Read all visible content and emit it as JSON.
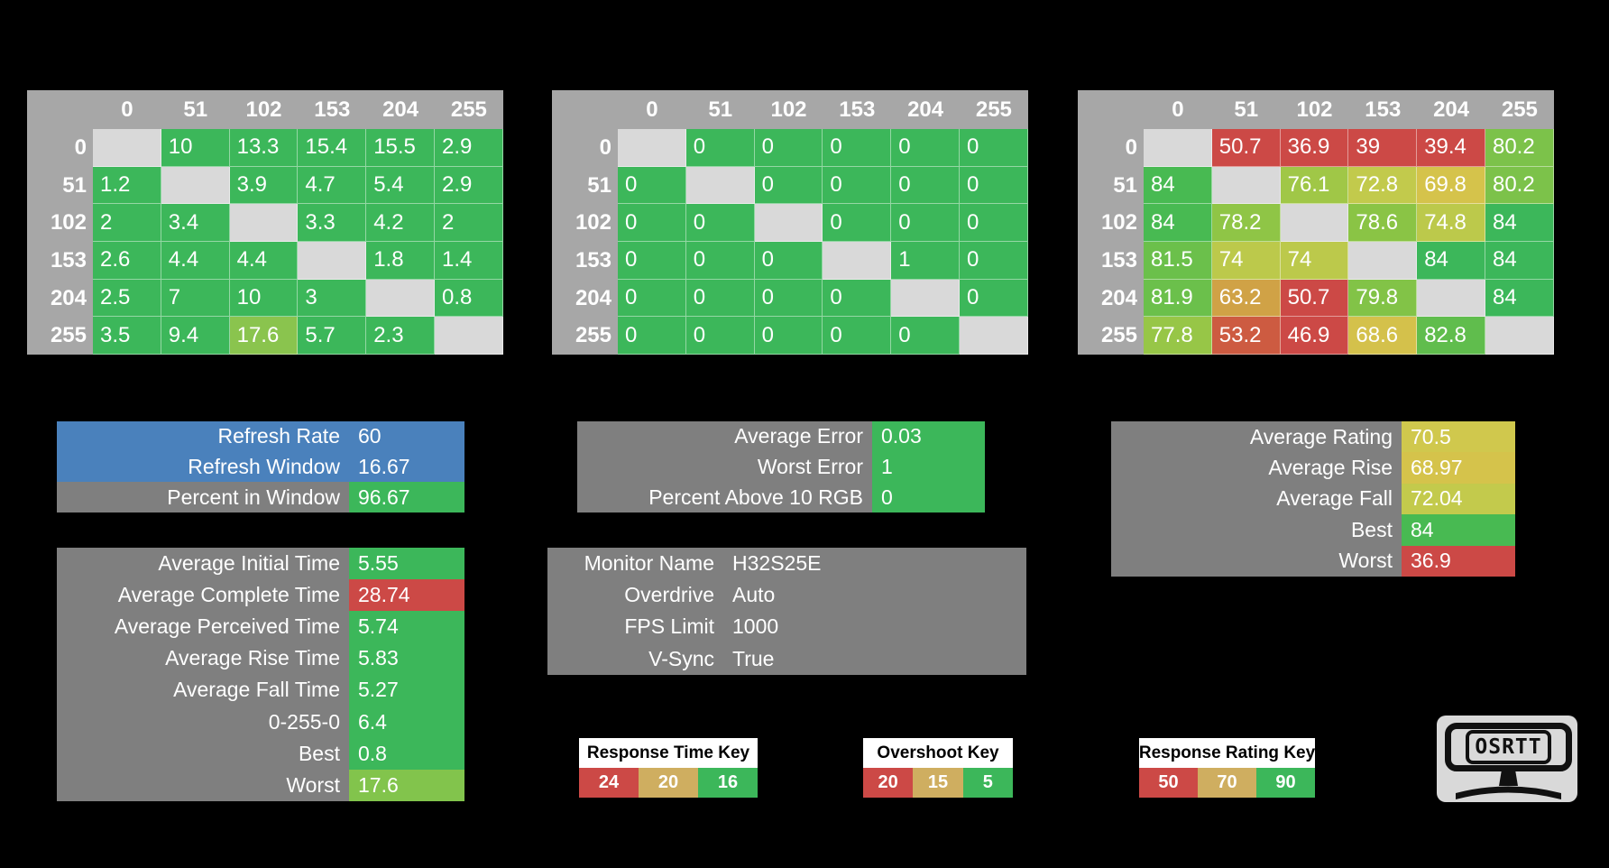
{
  "colors": {
    "background": "#000000",
    "good_green": "#3CB75A",
    "bad_red": "#CC4946",
    "warn_gold": "#CFAE60",
    "info_blue": "#4A81BC",
    "panel_gray": "#7F7F7F",
    "table_header_gray": "#A7A7A7",
    "diagonal_gray": "#D9D9D9"
  },
  "chart_data": [
    {
      "type": "heatmap",
      "id": "table-response-time",
      "name": "response-time-table",
      "x_labels": [
        "0",
        "51",
        "102",
        "153",
        "204",
        "255"
      ],
      "y_labels": [
        "0",
        "51",
        "102",
        "153",
        "204",
        "255"
      ],
      "values": [
        [
          null,
          10,
          13.3,
          15.4,
          15.5,
          2.9
        ],
        [
          1.2,
          null,
          3.9,
          4.7,
          5.4,
          2.9
        ],
        [
          2,
          3.4,
          null,
          3.3,
          4.2,
          2
        ],
        [
          2.6,
          4.4,
          4.4,
          null,
          1.8,
          1.4
        ],
        [
          2.5,
          7,
          10,
          3,
          null,
          0.8
        ],
        [
          3.5,
          9.4,
          17.6,
          5.7,
          2.3,
          null
        ]
      ],
      "cell_colors": [
        [
          null,
          "#3CB75A",
          "#3CB75A",
          "#3CB75A",
          "#3CB75A",
          "#3CB75A"
        ],
        [
          "#3CB75A",
          null,
          "#3CB75A",
          "#3CB75A",
          "#3CB75A",
          "#3CB75A"
        ],
        [
          "#3CB75A",
          "#3CB75A",
          null,
          "#3CB75A",
          "#3CB75A",
          "#3CB75A"
        ],
        [
          "#3CB75A",
          "#3CB75A",
          "#3CB75A",
          null,
          "#3CB75A",
          "#3CB75A"
        ],
        [
          "#3CB75A",
          "#3CB75A",
          "#3CB75A",
          "#3CB75A",
          null,
          "#3CB75A"
        ],
        [
          "#3CB75A",
          "#3CB75A",
          "#8AC44E",
          "#3CB75A",
          "#3CB75A",
          null
        ]
      ]
    },
    {
      "type": "heatmap",
      "id": "table-overshoot",
      "name": "overshoot-table",
      "x_labels": [
        "0",
        "51",
        "102",
        "153",
        "204",
        "255"
      ],
      "y_labels": [
        "0",
        "51",
        "102",
        "153",
        "204",
        "255"
      ],
      "values": [
        [
          null,
          0,
          0,
          0,
          0,
          0
        ],
        [
          0,
          null,
          0,
          0,
          0,
          0
        ],
        [
          0,
          0,
          null,
          0,
          0,
          0
        ],
        [
          0,
          0,
          0,
          null,
          1,
          0
        ],
        [
          0,
          0,
          0,
          0,
          null,
          0
        ],
        [
          0,
          0,
          0,
          0,
          0,
          null
        ]
      ],
      "cell_colors": [
        [
          null,
          "#3CB75A",
          "#3CB75A",
          "#3CB75A",
          "#3CB75A",
          "#3CB75A"
        ],
        [
          "#3CB75A",
          null,
          "#3CB75A",
          "#3CB75A",
          "#3CB75A",
          "#3CB75A"
        ],
        [
          "#3CB75A",
          "#3CB75A",
          null,
          "#3CB75A",
          "#3CB75A",
          "#3CB75A"
        ],
        [
          "#3CB75A",
          "#3CB75A",
          "#3CB75A",
          null,
          "#3CB75A",
          "#3CB75A"
        ],
        [
          "#3CB75A",
          "#3CB75A",
          "#3CB75A",
          "#3CB75A",
          null,
          "#3CB75A"
        ],
        [
          "#3CB75A",
          "#3CB75A",
          "#3CB75A",
          "#3CB75A",
          "#3CB75A",
          null
        ]
      ]
    },
    {
      "type": "heatmap",
      "id": "table-rating",
      "name": "response-rating-table",
      "x_labels": [
        "0",
        "51",
        "102",
        "153",
        "204",
        "255"
      ],
      "y_labels": [
        "0",
        "51",
        "102",
        "153",
        "204",
        "255"
      ],
      "values": [
        [
          null,
          50.7,
          36.9,
          39,
          39.4,
          80.2
        ],
        [
          84,
          null,
          76.1,
          72.8,
          69.8,
          80.2
        ],
        [
          84,
          78.2,
          null,
          78.6,
          74.8,
          84
        ],
        [
          81.5,
          74,
          74,
          null,
          84,
          84
        ],
        [
          81.9,
          63.2,
          50.7,
          79.8,
          null,
          84
        ],
        [
          77.8,
          53.2,
          46.9,
          68.6,
          82.8,
          null
        ]
      ],
      "cell_colors": [
        [
          null,
          "#CC4946",
          "#CC4946",
          "#CC4946",
          "#CC4946",
          "#7CC24A"
        ],
        [
          "#48BA52",
          null,
          "#A0C747",
          "#C2CA4C",
          "#D5C34B",
          "#7CC24A"
        ],
        [
          "#48BA52",
          "#8FC546",
          null,
          "#8AC445",
          "#BCC94B",
          "#3CB75A"
        ],
        [
          "#6BC04B",
          "#BCC94B",
          "#BCC94B",
          null,
          "#3CB75A",
          "#3CB75A"
        ],
        [
          "#6BC04B",
          "#D0A246",
          "#CC4946",
          "#82C347",
          null,
          "#3CB75A"
        ],
        [
          "#97C647",
          "#CD5B41",
          "#CC4946",
          "#D4C14B",
          "#60BD4D",
          null
        ]
      ]
    }
  ],
  "panels": [
    {
      "id": "panel-refresh",
      "name": "refresh-info-panel",
      "rows": [
        {
          "label": "Refresh Rate",
          "value": "60",
          "label_bg": "#4A81BC",
          "value_bg": "#4A81BC"
        },
        {
          "label": "Refresh Window",
          "value": "16.67",
          "label_bg": "#4A81BC",
          "value_bg": "#4A81BC"
        },
        {
          "label": "Percent in Window",
          "value": "96.67",
          "label_bg": "#7F7F7F",
          "value_bg": "#3CB75A"
        }
      ]
    },
    {
      "id": "panel-error",
      "name": "error-stats-panel",
      "rows": [
        {
          "label": "Average Error",
          "value": "0.03",
          "label_bg": "#7F7F7F",
          "value_bg": "#3CB75A"
        },
        {
          "label": "Worst Error",
          "value": "1",
          "label_bg": "#7F7F7F",
          "value_bg": "#3CB75A"
        },
        {
          "label": "Percent Above 10 RGB",
          "value": "0",
          "label_bg": "#7F7F7F",
          "value_bg": "#3CB75A"
        }
      ]
    },
    {
      "id": "panel-rating",
      "name": "rating-stats-panel",
      "rows": [
        {
          "label": "Average Rating",
          "value": "70.5",
          "label_bg": "#7F7F7F",
          "value_bg": "#D0C84D"
        },
        {
          "label": "Average Rise",
          "value": "68.97",
          "label_bg": "#7F7F7F",
          "value_bg": "#D5C34B"
        },
        {
          "label": "Average Fall",
          "value": "72.04",
          "label_bg": "#7F7F7F",
          "value_bg": "#C3CA4C"
        },
        {
          "label": "Best",
          "value": "84",
          "label_bg": "#7F7F7F",
          "value_bg": "#48BA52"
        },
        {
          "label": "Worst",
          "value": "36.9",
          "label_bg": "#7F7F7F",
          "value_bg": "#CC4946"
        }
      ]
    },
    {
      "id": "panel-times",
      "name": "time-stats-panel",
      "rows": [
        {
          "label": "Average Initial Time",
          "value": "5.55",
          "label_bg": "#7F7F7F",
          "value_bg": "#3CB75A"
        },
        {
          "label": "Average Complete Time",
          "value": "28.74",
          "label_bg": "#7F7F7F",
          "value_bg": "#CC4946"
        },
        {
          "label": "Average Perceived Time",
          "value": "5.74",
          "label_bg": "#7F7F7F",
          "value_bg": "#3CB75A"
        },
        {
          "label": "Average Rise Time",
          "value": "5.83",
          "label_bg": "#7F7F7F",
          "value_bg": "#3CB75A"
        },
        {
          "label": "Average Fall Time",
          "value": "5.27",
          "label_bg": "#7F7F7F",
          "value_bg": "#3CB75A"
        },
        {
          "label": "0-255-0",
          "value": "6.4",
          "label_bg": "#7F7F7F",
          "value_bg": "#3CB75A"
        },
        {
          "label": "Best",
          "value": "0.8",
          "label_bg": "#7F7F7F",
          "value_bg": "#3CB75A"
        },
        {
          "label": "Worst",
          "value": "17.6",
          "label_bg": "#7F7F7F",
          "value_bg": "#82C44C"
        }
      ]
    },
    {
      "id": "panel-monitor",
      "name": "monitor-info-panel",
      "rows": [
        {
          "label": "Monitor Name",
          "value": "H32S25E",
          "label_bg": "#7F7F7F",
          "value_bg": "#7F7F7F"
        },
        {
          "label": "Overdrive",
          "value": "Auto",
          "label_bg": "#7F7F7F",
          "value_bg": "#7F7F7F"
        },
        {
          "label": "FPS Limit",
          "value": "1000",
          "label_bg": "#7F7F7F",
          "value_bg": "#7F7F7F"
        },
        {
          "label": "V-Sync",
          "value": "True",
          "label_bg": "#7F7F7F",
          "value_bg": "#7F7F7F"
        }
      ]
    }
  ],
  "keys": [
    {
      "id": "key-response-time",
      "name": "response-time-key",
      "title": "Response Time Key",
      "cells": [
        {
          "v": "24",
          "c": "#CC4946"
        },
        {
          "v": "20",
          "c": "#CFAE60"
        },
        {
          "v": "16",
          "c": "#3CB75A"
        }
      ]
    },
    {
      "id": "key-overshoot",
      "name": "overshoot-key",
      "title": "Overshoot Key",
      "cells": [
        {
          "v": "20",
          "c": "#CC4946"
        },
        {
          "v": "15",
          "c": "#CFAE60"
        },
        {
          "v": "5",
          "c": "#3CB75A"
        }
      ]
    },
    {
      "id": "key-rating",
      "name": "response-rating-key",
      "title": "Response Rating Key",
      "cells": [
        {
          "v": "50",
          "c": "#CC4946"
        },
        {
          "v": "70",
          "c": "#CFAE60"
        },
        {
          "v": "90",
          "c": "#3CB75A"
        }
      ]
    }
  ],
  "logo": {
    "text": "OSRTT"
  }
}
